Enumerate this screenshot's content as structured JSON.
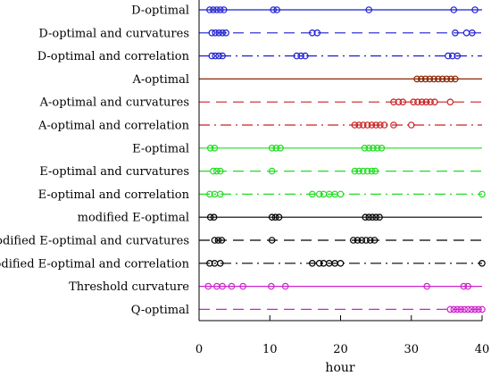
{
  "chart_data": {
    "type": "scatter",
    "xlabel": "hour",
    "xlim": [
      0,
      40
    ],
    "xticks": [
      0,
      10,
      20,
      30,
      40
    ],
    "grid": false,
    "legend": "none",
    "series": [
      {
        "name": "D-optimal",
        "color": "#1f1fd1",
        "line_style": "solid",
        "values": [
          1.5,
          2,
          2.5,
          3,
          3.5,
          10.5,
          11,
          24,
          36,
          39
        ]
      },
      {
        "name": "D-optimal and curvatures",
        "color": "#1f1fd1",
        "line_style": "dashed",
        "values": [
          1.8,
          2.3,
          2.8,
          3.3,
          3.8,
          16,
          16.7,
          36.2,
          37.8,
          38.6
        ]
      },
      {
        "name": "D-optimal and correlation",
        "color": "#1f1fd1",
        "line_style": "dashdot",
        "values": [
          1.8,
          2.3,
          2.8,
          3.3,
          13.8,
          14.4,
          15,
          35.2,
          35.8,
          36.5
        ]
      },
      {
        "name": "A-optimal",
        "color": "#8b2500",
        "line_style": "solid",
        "values": [
          30.8,
          31.4,
          32,
          32.6,
          33.2,
          33.8,
          34.4,
          35,
          35.6,
          36.2
        ]
      },
      {
        "name": "A-optimal and curvatures",
        "color": "#cc2222",
        "line_style": "dashed",
        "values": [
          27.5,
          28.2,
          28.8,
          30.3,
          30.9,
          31.5,
          32.1,
          32.7,
          33.3,
          35.5
        ]
      },
      {
        "name": "A-optimal and correlation",
        "color": "#cc2222",
        "line_style": "dashdot",
        "values": [
          22,
          22.6,
          23.2,
          23.8,
          24.4,
          25,
          25.6,
          26.2,
          27.5,
          30
        ]
      },
      {
        "name": "E-optimal",
        "color": "#22dd22",
        "line_style": "solid",
        "values": [
          1.6,
          2.2,
          10.3,
          10.9,
          11.5,
          23.4,
          24,
          24.6,
          25.2,
          25.8
        ]
      },
      {
        "name": "E-optimal and curvatures",
        "color": "#22dd22",
        "line_style": "dashed",
        "values": [
          2,
          2.5,
          3,
          10.3,
          22,
          22.6,
          23.2,
          23.8,
          24.4,
          24.9
        ]
      },
      {
        "name": "E-optimal and correlation",
        "color": "#22dd22",
        "line_style": "dashdot",
        "values": [
          1.5,
          2.2,
          3,
          16,
          17,
          17.6,
          18.4,
          19.2,
          20,
          40
        ]
      },
      {
        "name": "modified E-optimal",
        "color": "#000000",
        "line_style": "solid",
        "values": [
          1.6,
          2.1,
          10.3,
          10.8,
          11.3,
          23.5,
          24,
          24.5,
          25,
          25.5
        ]
      },
      {
        "name": "modified E-optimal and curvatures",
        "color": "#000000",
        "line_style": "dashed",
        "values": [
          2.2,
          2.7,
          3.2,
          10.3,
          21.8,
          22.4,
          23,
          23.6,
          24.2,
          24.8
        ]
      },
      {
        "name": "modified E-optimal and correlation",
        "color": "#000000",
        "line_style": "dashdot",
        "values": [
          1.5,
          2.2,
          3,
          16,
          17,
          17.6,
          18.4,
          19.2,
          20,
          40
        ]
      },
      {
        "name": "Threshold curvature",
        "color": "#cc22cc",
        "line_style": "solid",
        "values": [
          1.3,
          2.5,
          3.3,
          4.6,
          6.2,
          10.2,
          12.2,
          32.2,
          37.4,
          38
        ]
      },
      {
        "name": "Q-optimal",
        "color": "#cc22cc",
        "line_style": "dashed",
        "values": [
          35.5,
          36,
          36.5,
          37,
          37.5,
          38,
          38.5,
          39,
          39.5,
          40
        ]
      }
    ]
  }
}
